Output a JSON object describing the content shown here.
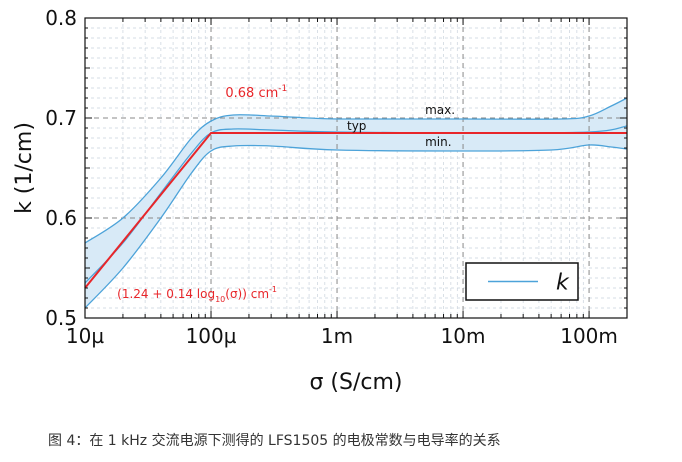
{
  "caption": "图 4：在 1 kHz 交流电源下测得的 LFS1505 的电极常数与电导率的关系",
  "colors": {
    "band_fill": "#d8eaf7",
    "band_line": "#4da3d9",
    "fit_line": "#e8262a",
    "grid": "#888888",
    "minor_grid": "#c9d2dc",
    "text": "#111111",
    "annotation_red": "#e8262a"
  },
  "chart_data": {
    "type": "line",
    "xscale": "log",
    "xlabel": "σ (S/cm)",
    "ylabel": "k (1/cm)",
    "xlim": [
      1e-05,
      0.2
    ],
    "ylim": [
      0.5,
      0.8
    ],
    "x_ticks": [
      {
        "value": 1e-05,
        "label": "10µ"
      },
      {
        "value": 0.0001,
        "label": "100µ"
      },
      {
        "value": 0.001,
        "label": "1m"
      },
      {
        "value": 0.01,
        "label": "10m"
      },
      {
        "value": 0.1,
        "label": "100m"
      }
    ],
    "y_ticks": [
      {
        "value": 0.5,
        "label": "0.5"
      },
      {
        "value": 0.6,
        "label": "0.6"
      },
      {
        "value": 0.7,
        "label": "0.7"
      },
      {
        "value": 0.8,
        "label": "0.8"
      }
    ],
    "grid": true,
    "legend": {
      "position": "bottom-right",
      "entries": [
        {
          "label": "k",
          "color": "#4da3d9"
        }
      ]
    },
    "series": [
      {
        "name": "k",
        "role": "typ",
        "x": [
          1e-05,
          2e-05,
          4e-05,
          7e-05,
          0.0001,
          0.00015,
          0.0003,
          0.001,
          0.01,
          0.1,
          0.2
        ],
        "y": [
          0.535,
          0.575,
          0.625,
          0.665,
          0.685,
          0.689,
          0.688,
          0.686,
          0.685,
          0.686,
          0.692
        ]
      },
      {
        "role": "max",
        "x": [
          1e-05,
          2e-05,
          4e-05,
          7e-05,
          0.0001,
          0.00015,
          0.0003,
          0.0006,
          0.001,
          0.003,
          0.01,
          0.06,
          0.1,
          0.15,
          0.2
        ],
        "y": [
          0.575,
          0.6,
          0.64,
          0.68,
          0.697,
          0.703,
          0.702,
          0.7,
          0.699,
          0.699,
          0.699,
          0.699,
          0.702,
          0.712,
          0.72
        ]
      },
      {
        "role": "min",
        "x": [
          1e-05,
          2e-05,
          4e-05,
          7e-05,
          0.0001,
          0.00015,
          0.0003,
          0.001,
          0.01,
          0.05,
          0.1,
          0.15,
          0.2
        ],
        "y": [
          0.51,
          0.55,
          0.6,
          0.645,
          0.667,
          0.672,
          0.672,
          0.668,
          0.667,
          0.668,
          0.673,
          0.671,
          0.669
        ]
      },
      {
        "name": "fit",
        "x": [
          1e-05,
          0.0001,
          0.2
        ],
        "y": [
          0.53,
          0.685,
          0.685
        ]
      }
    ],
    "annotations": [
      {
        "text": "max.",
        "x": 0.005,
        "y": 0.704,
        "color": "#111111"
      },
      {
        "text": "typ",
        "x": 0.0012,
        "y": 0.688,
        "color": "#111111"
      },
      {
        "text": "min.",
        "x": 0.005,
        "y": 0.672,
        "color": "#111111"
      }
    ],
    "red_label_1": {
      "main": "0.68 cm",
      "sup": "-1",
      "x": 0.00013,
      "y": 0.721
    },
    "red_label_2": {
      "pre": "(1.24 + 0.14 log",
      "sub": "10",
      "post": "(σ)) cm",
      "sup": "-1",
      "x": 1.8e-05,
      "y": 0.52
    }
  }
}
